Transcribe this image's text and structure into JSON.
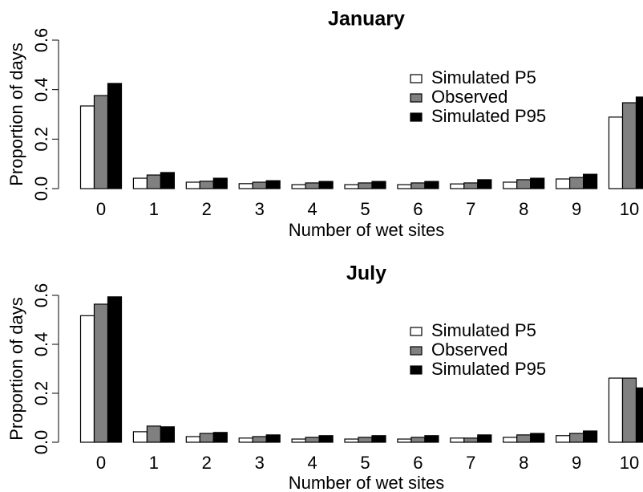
{
  "chart_data": [
    {
      "type": "bar",
      "title": "January",
      "xlabel": "Number of wet sites",
      "ylabel": "Proportion of days",
      "categories": [
        "0",
        "1",
        "2",
        "3",
        "4",
        "5",
        "6",
        "7",
        "8",
        "9",
        "10"
      ],
      "series": [
        {
          "name": "Simulated P5",
          "color": "#ffffff",
          "values": [
            0.334,
            0.042,
            0.026,
            0.02,
            0.016,
            0.016,
            0.016,
            0.019,
            0.026,
            0.039,
            0.289
          ]
        },
        {
          "name": "Observed",
          "color": "#808080",
          "values": [
            0.376,
            0.055,
            0.03,
            0.026,
            0.023,
            0.023,
            0.023,
            0.023,
            0.036,
            0.045,
            0.347
          ]
        },
        {
          "name": "Simulated P95",
          "color": "#000000",
          "values": [
            0.425,
            0.065,
            0.042,
            0.032,
            0.029,
            0.029,
            0.029,
            0.036,
            0.042,
            0.058,
            0.37
          ]
        }
      ],
      "ylim": [
        0,
        0.6
      ],
      "yticks": [
        {
          "value": 0,
          "label": "0.0"
        },
        0.2,
        0.4,
        0.6
      ],
      "legend": "topright"
    },
    {
      "type": "bar",
      "title": "July",
      "xlabel": "Number of wet sites",
      "ylabel": "Proportion of days",
      "categories": [
        "0",
        "1",
        "2",
        "3",
        "4",
        "5",
        "6",
        "7",
        "8",
        "9",
        "10"
      ],
      "series": [
        {
          "name": "Simulated P5",
          "color": "#ffffff",
          "values": [
            0.517,
            0.043,
            0.023,
            0.017,
            0.013,
            0.013,
            0.013,
            0.017,
            0.02,
            0.027,
            0.262
          ]
        },
        {
          "name": "Observed",
          "color": "#808080",
          "values": [
            0.564,
            0.066,
            0.036,
            0.023,
            0.02,
            0.02,
            0.02,
            0.017,
            0.03,
            0.036,
            0.262
          ]
        },
        {
          "name": "Simulated P95",
          "color": "#000000",
          "values": [
            0.594,
            0.063,
            0.04,
            0.03,
            0.027,
            0.027,
            0.027,
            0.03,
            0.036,
            0.046,
            0.222
          ]
        }
      ],
      "ylim": [
        0,
        0.6
      ],
      "yticks": [
        {
          "value": 0,
          "label": "0.0"
        },
        0.2,
        0.4,
        0.6
      ],
      "legend": "topright"
    }
  ]
}
